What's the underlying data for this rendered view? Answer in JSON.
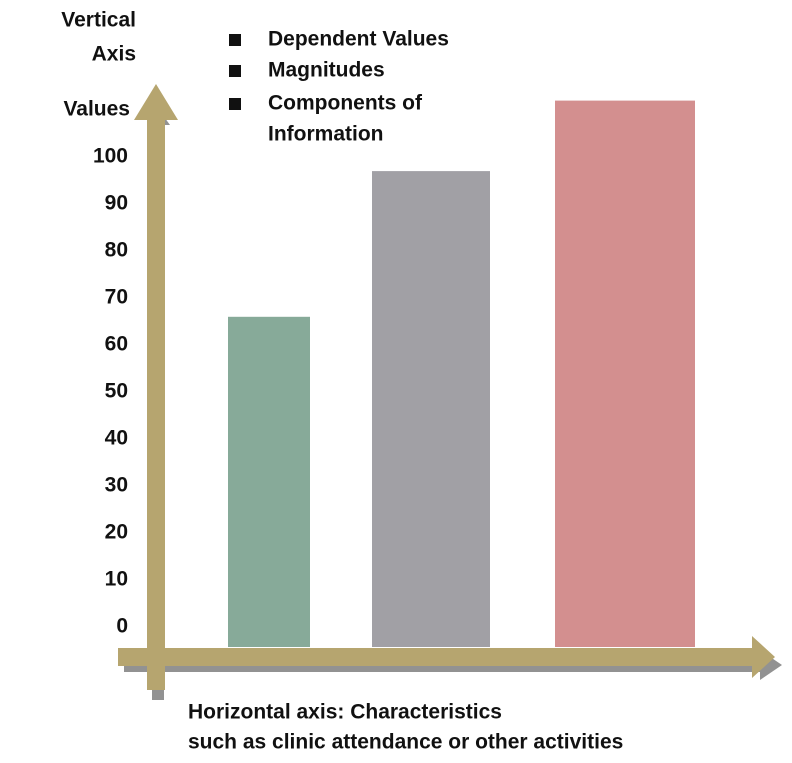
{
  "chart_data": {
    "type": "bar",
    "y_axis_title": [
      "Vertical",
      "Axis"
    ],
    "y_axis_label": "Values",
    "bullets": [
      [
        "Dependent Values"
      ],
      [
        "Magnitudes"
      ],
      [
        "Components of",
        "Information"
      ]
    ],
    "x_axis_title": [
      "Horizontal axis: Characteristics",
      "such as clinic attendance or other activities"
    ],
    "categories": [
      null,
      null,
      null
    ],
    "values": [
      66,
      97,
      112
    ],
    "colors": [
      "#87aa99",
      "#a1a0a5",
      "#d38f8f"
    ],
    "ylim": [
      0,
      115
    ],
    "yticks": [
      0,
      10,
      20,
      30,
      40,
      50,
      60,
      70,
      80,
      90,
      100
    ],
    "grid": false
  }
}
